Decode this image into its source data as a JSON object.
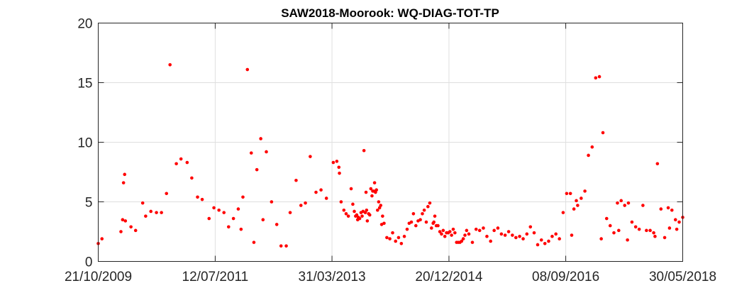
{
  "chart_data": {
    "type": "scatter",
    "title": "SAW2018-Moorook: WQ-DIAG-TOT-TP",
    "xlabel": "",
    "ylabel": "",
    "xlim": [
      "2009-10-21",
      "2018-05-30"
    ],
    "ylim": [
      0,
      20
    ],
    "xticks": [
      {
        "date": "2009-10-21",
        "label": "21/10/2009"
      },
      {
        "date": "2011-07-12",
        "label": "12/07/2011"
      },
      {
        "date": "2013-03-31",
        "label": "31/03/2013"
      },
      {
        "date": "2014-12-20",
        "label": "20/12/2014"
      },
      {
        "date": "2016-09-08",
        "label": "08/09/2016"
      },
      {
        "date": "2018-05-30",
        "label": "30/05/2018"
      }
    ],
    "yticks": [
      0,
      5,
      10,
      15,
      20
    ],
    "grid": true,
    "marker_color": "#ff0000",
    "series": [
      {
        "x": [
          "2009-10-21",
          "2009-11-10",
          "2010-02-20",
          "2010-03-01",
          "2010-03-06",
          "2010-03-12",
          "2010-03-16",
          "2010-06-17",
          "2010-07-03",
          "2010-07-31",
          "2010-08-30",
          "2010-09-26",
          "2010-10-23",
          "2010-11-11",
          "2010-12-15",
          "2011-01-09",
          "2011-02-11",
          "2011-03-08",
          "2011-04-08",
          "2011-05-03",
          "2011-06-09",
          "2011-07-05",
          "2011-08-01",
          "2011-08-28",
          "2011-09-22",
          "2011-10-18",
          "2011-11-13",
          "2011-12-08",
          "2012-01-01",
          "2012-01-22",
          "2012-02-21",
          "2012-03-13",
          "2012-04-12",
          "2012-05-10",
          "2012-06-07",
          "2012-06-30",
          "2012-07-28",
          "2012-08-18",
          "2012-09-19",
          "2012-10-15",
          "2012-11-08",
          "2012-12-04",
          "2013-01-04",
          "2013-01-31",
          "2013-03-01",
          "2013-04-07",
          "2013-04-26",
          "2013-05-07",
          "2013-05-10",
          "2013-05-19",
          "2013-06-03",
          "2013-06-15",
          "2013-06-27",
          "2013-07-12",
          "2013-07-21",
          "2013-07-29",
          "2013-08-05",
          "2013-08-11",
          "2013-08-16",
          "2013-08-20",
          "2013-08-27",
          "2013-09-03",
          "2013-09-09",
          "2013-09-14",
          "2013-09-19",
          "2013-09-26",
          "2013-09-30",
          "2013-10-07",
          "2013-10-14",
          "2013-10-20",
          "2013-10-26",
          "2013-11-01",
          "2013-11-05",
          "2013-11-10",
          "2013-11-15",
          "2013-11-20",
          "2013-11-25",
          "2013-12-01",
          "2013-12-07",
          "2013-12-12",
          "2013-12-18",
          "2013-12-23",
          "2014-01-05",
          "2014-01-20",
          "2014-02-05",
          "2014-02-20",
          "2014-03-08",
          "2014-03-24",
          "2014-04-08",
          "2014-04-24",
          "2014-05-09",
          "2014-05-20",
          "2014-06-01",
          "2014-06-12",
          "2014-06-25",
          "2014-07-07",
          "2014-07-19",
          "2014-07-30",
          "2014-08-09",
          "2014-08-20",
          "2014-08-29",
          "2014-09-08",
          "2014-09-17",
          "2014-09-26",
          "2014-10-05",
          "2014-10-13",
          "2014-10-22",
          "2014-11-01",
          "2014-11-10",
          "2014-11-19",
          "2014-11-28",
          "2014-12-07",
          "2014-12-16",
          "2014-12-25",
          "2015-01-03",
          "2015-01-12",
          "2015-01-21",
          "2015-01-30",
          "2015-02-08",
          "2015-02-17",
          "2015-02-26",
          "2015-03-07",
          "2015-03-16",
          "2015-03-25",
          "2015-04-06",
          "2015-04-25",
          "2015-05-15",
          "2015-06-03",
          "2015-06-23",
          "2015-07-12",
          "2015-08-01",
          "2015-08-20",
          "2015-09-09",
          "2015-09-28",
          "2015-10-18",
          "2015-11-06",
          "2015-11-26",
          "2015-12-15",
          "2016-01-04",
          "2016-01-23",
          "2016-02-12",
          "2016-03-02",
          "2016-03-22",
          "2016-04-10",
          "2016-04-30",
          "2016-05-19",
          "2016-06-08",
          "2016-06-27",
          "2016-07-17",
          "2016-08-05",
          "2016-08-25",
          "2016-09-13",
          "2016-10-03",
          "2016-10-22",
          "2016-11-11",
          "2016-11-30",
          "2016-12-20",
          "2017-01-08",
          "2017-01-28",
          "2017-02-16",
          "2017-03-08",
          "2017-03-27",
          "2017-04-16",
          "2017-05-05",
          "2017-05-25",
          "2017-06-13",
          "2017-07-03",
          "2017-07-22",
          "2017-08-11",
          "2017-08-30",
          "2017-09-19",
          "2017-10-08",
          "2017-10-28",
          "2017-11-16",
          "2017-12-06",
          "2017-12-25",
          "2018-01-14",
          "2018-02-02",
          "2018-02-22",
          "2018-03-13",
          "2018-04-02",
          "2018-04-21",
          "2018-05-11",
          "2018-05-30",
          "2010-04-15",
          "2010-05-10",
          "2011-11-28",
          "2012-02-05",
          "2012-03-25",
          "2013-10-03",
          "2013-12-28",
          "2014-09-30",
          "2016-10-10",
          "2016-11-04",
          "2017-03-18",
          "2017-06-20",
          "2017-08-06",
          "2018-01-01",
          "2018-03-20",
          "2018-04-28"
        ],
        "y": [
          1.5,
          1.9,
          2.5,
          3.5,
          6.6,
          7.3,
          3.4,
          4.9,
          3.8,
          4.2,
          4.1,
          4.1,
          5.7,
          16.5,
          8.2,
          8.6,
          8.3,
          7.0,
          5.4,
          5.2,
          3.6,
          4.5,
          4.3,
          4.1,
          2.9,
          3.6,
          4.4,
          5.4,
          16.1,
          9.1,
          7.7,
          10.3,
          9.2,
          5.0,
          3.1,
          1.3,
          1.3,
          4.1,
          6.8,
          4.7,
          4.9,
          8.8,
          5.8,
          6.0,
          5.3,
          8.3,
          8.4,
          7.9,
          7.4,
          5.0,
          4.3,
          4.0,
          3.8,
          6.1,
          4.8,
          4.2,
          3.8,
          3.9,
          3.5,
          3.7,
          3.6,
          4.1,
          3.8,
          4.2,
          9.3,
          4.1,
          5.8,
          3.4,
          4.0,
          3.9,
          6.1,
          5.5,
          5.9,
          5.9,
          6.6,
          5.8,
          6.0,
          4.3,
          5.0,
          4.5,
          4.7,
          3.1,
          3.2,
          2.0,
          1.9,
          2.4,
          1.7,
          2.0,
          1.5,
          2.1,
          2.7,
          3.2,
          3.3,
          4.0,
          3.0,
          3.4,
          3.5,
          4.0,
          4.3,
          3.3,
          4.6,
          4.9,
          2.8,
          3.2,
          3.8,
          3.0,
          3.0,
          2.5,
          2.3,
          2.6,
          2.1,
          2.4,
          2.4,
          2.5,
          2.2,
          2.7,
          2.4,
          1.6,
          1.6,
          1.6,
          1.7,
          1.9,
          2.2,
          2.6,
          2.3,
          1.6,
          2.7,
          2.6,
          2.8,
          2.1,
          1.7,
          2.6,
          2.8,
          2.3,
          2.2,
          2.5,
          2.2,
          2.0,
          2.1,
          1.9,
          2.3,
          2.9,
          2.4,
          1.4,
          1.8,
          1.5,
          1.7,
          2.1,
          2.3,
          1.9,
          4.1,
          5.7,
          5.7,
          4.4,
          4.7,
          5.3,
          5.9,
          8.9,
          9.6,
          15.4,
          15.5,
          10.8,
          3.6,
          3.0,
          2.4,
          4.9,
          5.1,
          4.7,
          4.9,
          3.3,
          2.9,
          2.7,
          4.7,
          2.6,
          2.6,
          2.4,
          8.2,
          4.4,
          2.0,
          4.5,
          4.3,
          3.5,
          3.3,
          3.7,
          2.9,
          2.6,
          2.7,
          1.6,
          3.5,
          4.3,
          3.8,
          3.3,
          2.2,
          5.1,
          1.9,
          2.6,
          1.8,
          2.1,
          2.8,
          2.7
        ]
      }
    ]
  }
}
